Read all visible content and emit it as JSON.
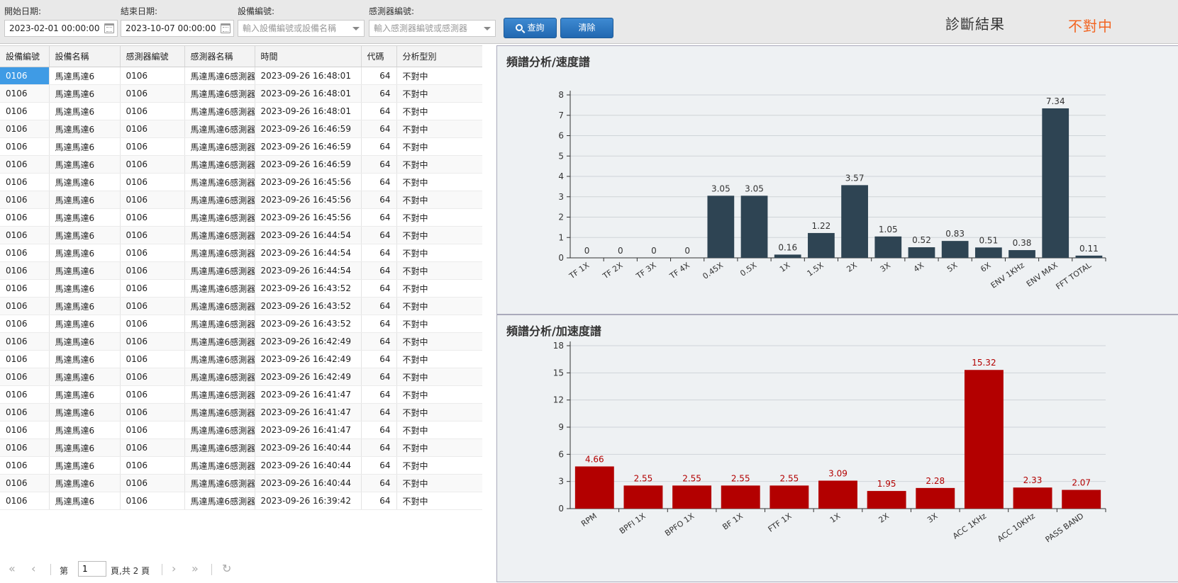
{
  "filters": {
    "start_label": "開始日期:",
    "start_value": "2023-02-01 00:00:00",
    "end_label": "結束日期:",
    "end_value": "2023-10-07 00:00:00",
    "device_label": "設備編號:",
    "device_placeholder": "輸入設備編號或設備名稱",
    "sensor_label": "感測器編號:",
    "sensor_placeholder": "輸入感測器編號或感測器"
  },
  "buttons": {
    "query": "查詢",
    "clear": "清除"
  },
  "diagnosis": {
    "label": "診斷結果",
    "value": "不對中",
    "value_color": "#f26522"
  },
  "table": {
    "columns": [
      "設備編號",
      "設備名稱",
      "感測器編號",
      "感測器名稱",
      "時間",
      "代碼",
      "分析型別"
    ],
    "rows": [
      [
        "0106",
        "馬達馬達6",
        "0106",
        "馬達馬達6感測器",
        "2023-09-26 16:48:01",
        "64",
        "不對中"
      ],
      [
        "0106",
        "馬達馬達6",
        "0106",
        "馬達馬達6感測器",
        "2023-09-26 16:48:01",
        "64",
        "不對中"
      ],
      [
        "0106",
        "馬達馬達6",
        "0106",
        "馬達馬達6感測器",
        "2023-09-26 16:48:01",
        "64",
        "不對中"
      ],
      [
        "0106",
        "馬達馬達6",
        "0106",
        "馬達馬達6感測器",
        "2023-09-26 16:46:59",
        "64",
        "不對中"
      ],
      [
        "0106",
        "馬達馬達6",
        "0106",
        "馬達馬達6感測器",
        "2023-09-26 16:46:59",
        "64",
        "不對中"
      ],
      [
        "0106",
        "馬達馬達6",
        "0106",
        "馬達馬達6感測器",
        "2023-09-26 16:46:59",
        "64",
        "不對中"
      ],
      [
        "0106",
        "馬達馬達6",
        "0106",
        "馬達馬達6感測器",
        "2023-09-26 16:45:56",
        "64",
        "不對中"
      ],
      [
        "0106",
        "馬達馬達6",
        "0106",
        "馬達馬達6感測器",
        "2023-09-26 16:45:56",
        "64",
        "不對中"
      ],
      [
        "0106",
        "馬達馬達6",
        "0106",
        "馬達馬達6感測器",
        "2023-09-26 16:45:56",
        "64",
        "不對中"
      ],
      [
        "0106",
        "馬達馬達6",
        "0106",
        "馬達馬達6感測器",
        "2023-09-26 16:44:54",
        "64",
        "不對中"
      ],
      [
        "0106",
        "馬達馬達6",
        "0106",
        "馬達馬達6感測器",
        "2023-09-26 16:44:54",
        "64",
        "不對中"
      ],
      [
        "0106",
        "馬達馬達6",
        "0106",
        "馬達馬達6感測器",
        "2023-09-26 16:44:54",
        "64",
        "不對中"
      ],
      [
        "0106",
        "馬達馬達6",
        "0106",
        "馬達馬達6感測器",
        "2023-09-26 16:43:52",
        "64",
        "不對中"
      ],
      [
        "0106",
        "馬達馬達6",
        "0106",
        "馬達馬達6感測器",
        "2023-09-26 16:43:52",
        "64",
        "不對中"
      ],
      [
        "0106",
        "馬達馬達6",
        "0106",
        "馬達馬達6感測器",
        "2023-09-26 16:43:52",
        "64",
        "不對中"
      ],
      [
        "0106",
        "馬達馬達6",
        "0106",
        "馬達馬達6感測器",
        "2023-09-26 16:42:49",
        "64",
        "不對中"
      ],
      [
        "0106",
        "馬達馬達6",
        "0106",
        "馬達馬達6感測器",
        "2023-09-26 16:42:49",
        "64",
        "不對中"
      ],
      [
        "0106",
        "馬達馬達6",
        "0106",
        "馬達馬達6感測器",
        "2023-09-26 16:42:49",
        "64",
        "不對中"
      ],
      [
        "0106",
        "馬達馬達6",
        "0106",
        "馬達馬達6感測器",
        "2023-09-26 16:41:47",
        "64",
        "不對中"
      ],
      [
        "0106",
        "馬達馬達6",
        "0106",
        "馬達馬達6感測器",
        "2023-09-26 16:41:47",
        "64",
        "不對中"
      ],
      [
        "0106",
        "馬達馬達6",
        "0106",
        "馬達馬達6感測器",
        "2023-09-26 16:41:47",
        "64",
        "不對中"
      ],
      [
        "0106",
        "馬達馬達6",
        "0106",
        "馬達馬達6感測器",
        "2023-09-26 16:40:44",
        "64",
        "不對中"
      ],
      [
        "0106",
        "馬達馬達6",
        "0106",
        "馬達馬達6感測器",
        "2023-09-26 16:40:44",
        "64",
        "不對中"
      ],
      [
        "0106",
        "馬達馬達6",
        "0106",
        "馬達馬達6感測器",
        "2023-09-26 16:40:44",
        "64",
        "不對中"
      ],
      [
        "0106",
        "馬達馬達6",
        "0106",
        "馬達馬達6感測器",
        "2023-09-26 16:39:42",
        "64",
        "不對中"
      ]
    ]
  },
  "pager": {
    "prefix": "第",
    "page": "1",
    "suffix": "頁,共 2 頁"
  },
  "chart_data": [
    {
      "type": "bar",
      "title": "頻譜分析/速度譜",
      "categories": [
        "TF 1X",
        "TF 2X",
        "TF 3X",
        "TF 4X",
        "0.45X",
        "0.5X",
        "1X",
        "1.5X",
        "2X",
        "3X",
        "4X",
        "5X",
        "6X",
        "ENV 1KHz",
        "ENV MAX",
        "FFT TOTAL"
      ],
      "values": [
        0,
        0,
        0,
        0,
        3.05,
        3.05,
        0.16,
        1.22,
        3.57,
        1.05,
        0.52,
        0.83,
        0.51,
        0.38,
        7.34,
        0.11
      ],
      "ylim": [
        0,
        8
      ],
      "yticks": [
        0,
        1,
        2,
        3,
        4,
        5,
        6,
        7,
        8
      ],
      "bar_color": "#2e4453",
      "label_color": "#333333",
      "grid": true
    },
    {
      "type": "bar",
      "title": "頻譜分析/加速度譜",
      "categories": [
        "RPM",
        "BPFI 1X",
        "BPFO 1X",
        "BF 1X",
        "FTF 1X",
        "1X",
        "2X",
        "3X",
        "ACC 1KHz",
        "ACC 10KHz",
        "PASS BAND"
      ],
      "values": [
        4.66,
        2.55,
        2.55,
        2.55,
        2.55,
        3.09,
        1.95,
        2.28,
        15.32,
        2.33,
        2.07
      ],
      "ylim": [
        0,
        18
      ],
      "yticks": [
        0,
        3,
        6,
        9,
        12,
        15,
        18
      ],
      "bar_color": "#b30000",
      "label_color": "#b30000",
      "grid": true
    }
  ]
}
